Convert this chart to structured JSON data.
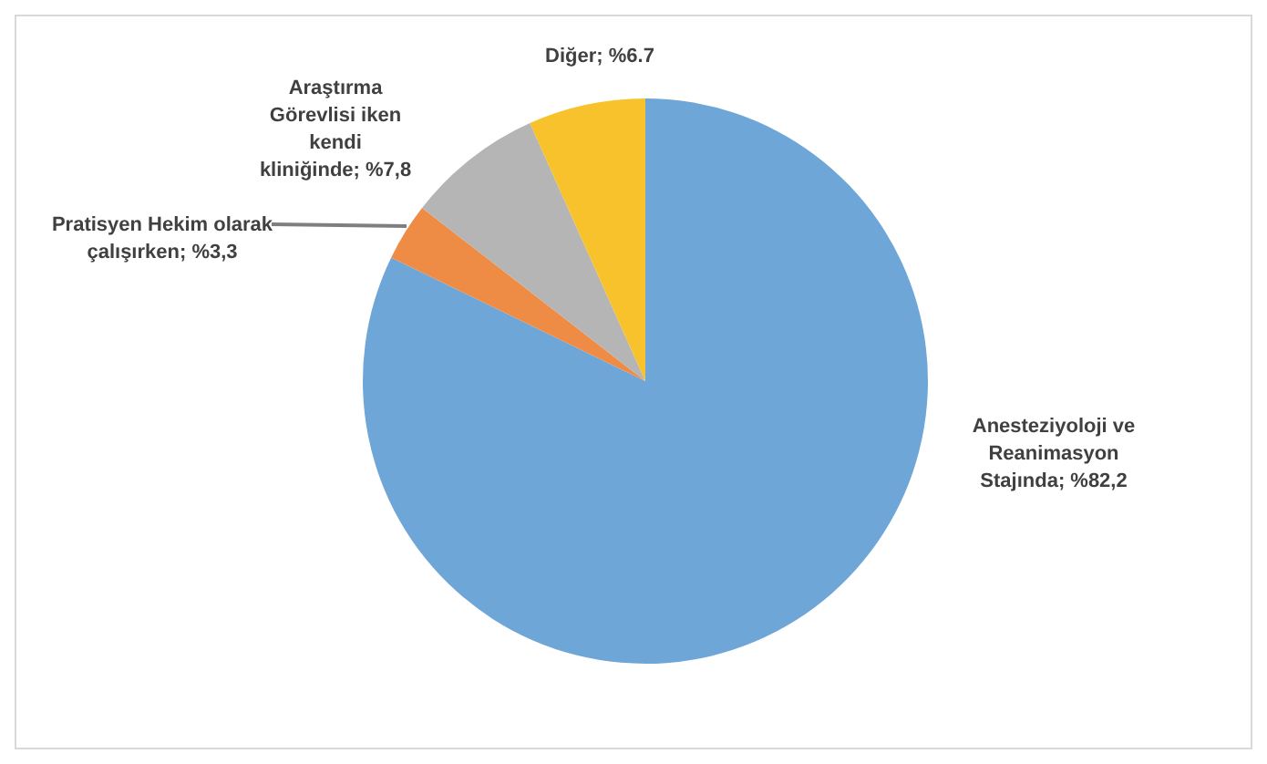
{
  "chart_data": {
    "type": "pie",
    "categories": [
      "Anesteziyoloji ve Reanimasyon Stajında",
      "Pratisyen Hekim olarak çalışırken",
      "Araştırma Görevlisi iken kendi kliniğinde",
      "Diğer"
    ],
    "values": [
      82.2,
      3.3,
      7.8,
      6.7
    ],
    "value_labels": [
      "%82,2",
      "%3,3",
      "%7,8",
      "%6.7"
    ],
    "colors": [
      "#6fa6d8",
      "#ee8c45",
      "#b5b5b5",
      "#f8c22c"
    ],
    "legend": false
  }
}
